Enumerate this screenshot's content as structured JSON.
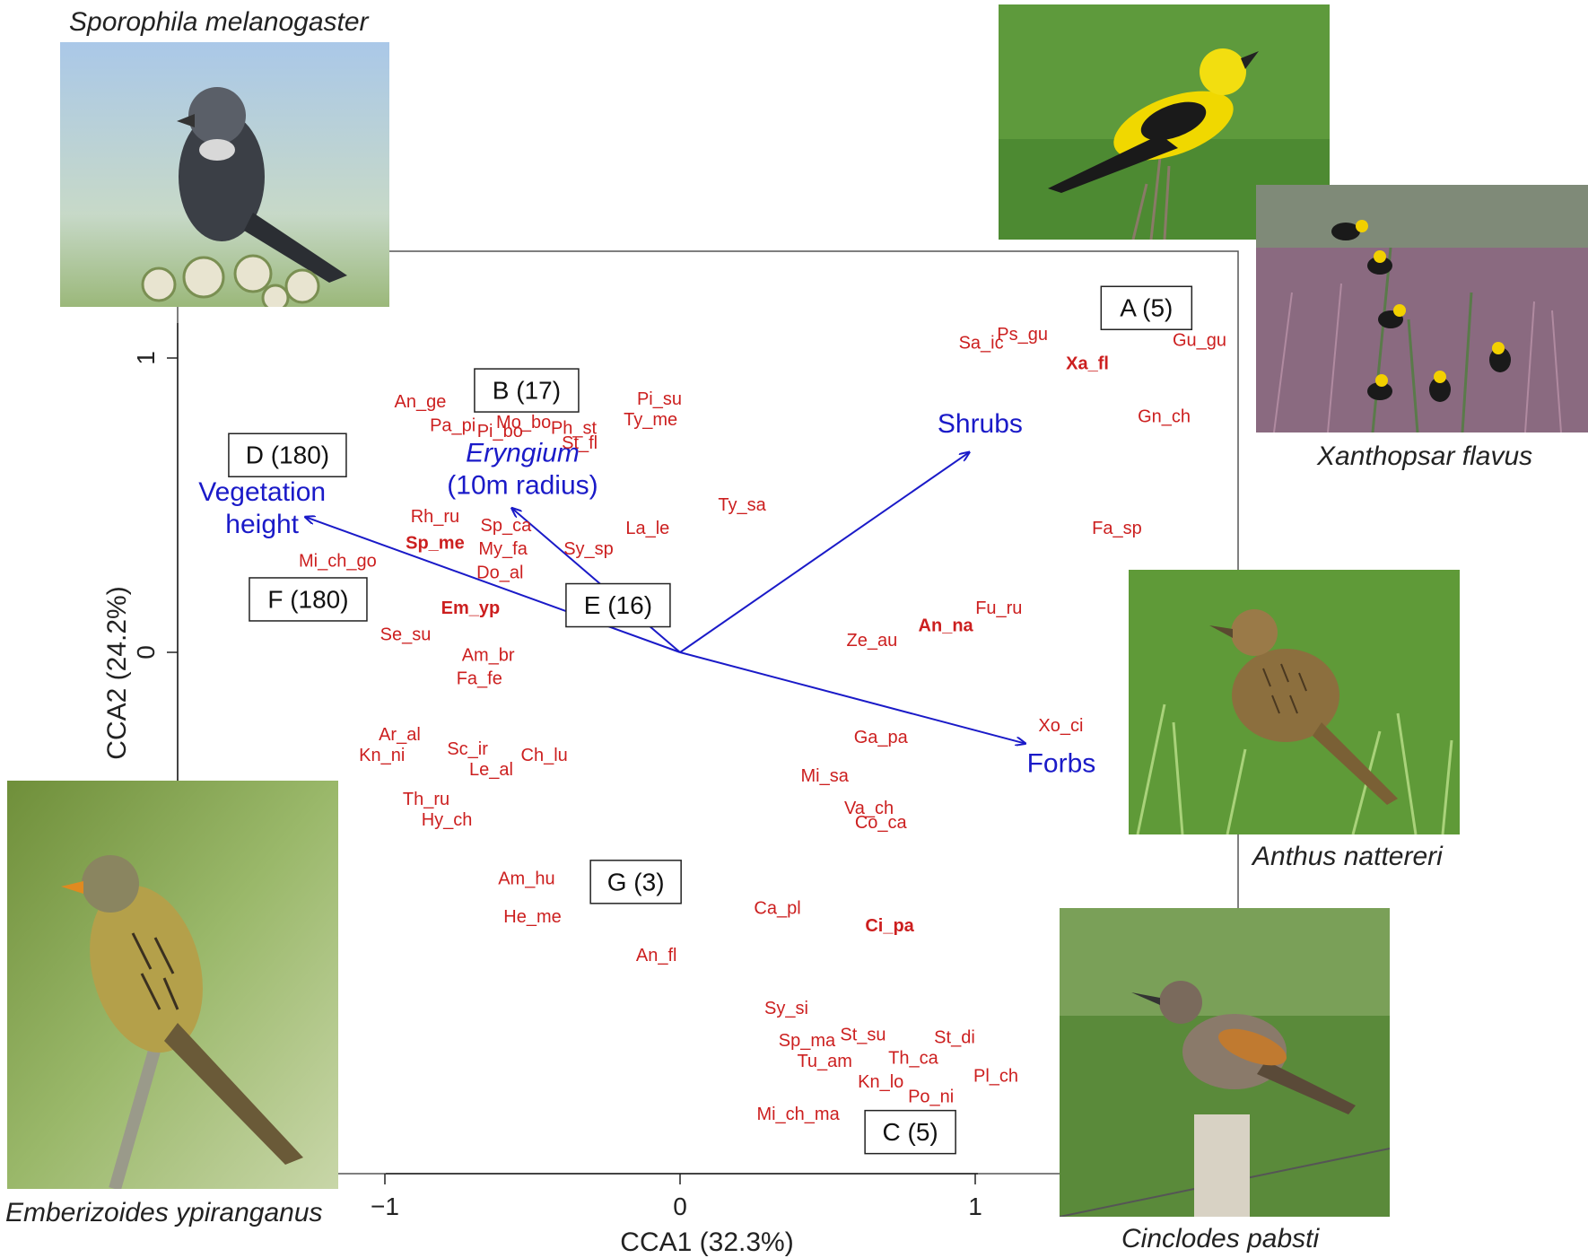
{
  "chart_data": {
    "type": "scatter",
    "xlabel": "CCA1 (32.3%)",
    "ylabel": "CCA2 (24.2%)",
    "xlim": [
      -1.7,
      1.9
    ],
    "ylim": [
      -1.9,
      1.35
    ],
    "x_ticks": [
      {
        "v": -1,
        "label": "−1"
      },
      {
        "v": 0,
        "label": "0"
      },
      {
        "v": 1,
        "label": "1"
      }
    ],
    "y_ticks": [
      {
        "v": 0,
        "label": "0"
      },
      {
        "v": 1,
        "label": "1"
      }
    ],
    "grid": false,
    "species_color": "#cc1f1f",
    "vector_color": "#1a1ac8",
    "species": [
      {
        "label": "Sa_ic",
        "x": 1.02,
        "y": 1.05,
        "bold": false
      },
      {
        "label": "Ps_gu",
        "x": 1.16,
        "y": 1.08,
        "bold": false
      },
      {
        "label": "Gu_gu",
        "x": 1.76,
        "y": 1.06,
        "bold": false
      },
      {
        "label": "Xa_fl",
        "x": 1.38,
        "y": 0.98,
        "bold": true
      },
      {
        "label": "Gn_ch",
        "x": 1.64,
        "y": 0.8,
        "bold": false
      },
      {
        "label": "Fa_sp",
        "x": 1.48,
        "y": 0.42,
        "bold": false
      },
      {
        "label": "Fu_ru",
        "x": 1.08,
        "y": 0.15,
        "bold": false
      },
      {
        "label": "An_na",
        "x": 0.9,
        "y": 0.09,
        "bold": true
      },
      {
        "label": "Ze_au",
        "x": 0.65,
        "y": 0.04,
        "bold": false
      },
      {
        "label": "Xo_ci",
        "x": 1.29,
        "y": -0.25,
        "bold": false
      },
      {
        "label": "Ga_pa",
        "x": 0.68,
        "y": -0.29,
        "bold": false
      },
      {
        "label": "Mi_sa",
        "x": 0.49,
        "y": -0.42,
        "bold": false
      },
      {
        "label": "Va_ch",
        "x": 0.64,
        "y": -0.53,
        "bold": false
      },
      {
        "label": "Co_ca",
        "x": 0.68,
        "y": -0.58,
        "bold": false
      },
      {
        "label": "Ci_pa",
        "x": 0.71,
        "y": -0.93,
        "bold": true
      },
      {
        "label": "Ca_pl",
        "x": 0.33,
        "y": -0.87,
        "bold": false
      },
      {
        "label": "An_fl",
        "x": -0.08,
        "y": -1.03,
        "bold": false
      },
      {
        "label": "Sy_si",
        "x": 0.36,
        "y": -1.21,
        "bold": false
      },
      {
        "label": "Sp_ma",
        "x": 0.43,
        "y": -1.32,
        "bold": false
      },
      {
        "label": "St_su",
        "x": 0.62,
        "y": -1.3,
        "bold": false
      },
      {
        "label": "St_di",
        "x": 0.93,
        "y": -1.31,
        "bold": false
      },
      {
        "label": "Tu_am",
        "x": 0.49,
        "y": -1.39,
        "bold": false
      },
      {
        "label": "Th_ca",
        "x": 0.79,
        "y": -1.38,
        "bold": false
      },
      {
        "label": "Kn_lo",
        "x": 0.68,
        "y": -1.46,
        "bold": false
      },
      {
        "label": "Pl_ch",
        "x": 1.07,
        "y": -1.44,
        "bold": false
      },
      {
        "label": "Po_ni",
        "x": 0.85,
        "y": -1.51,
        "bold": false
      },
      {
        "label": "Mi_ch_ma",
        "x": 0.4,
        "y": -1.57,
        "bold": false
      },
      {
        "label": "Pi_su",
        "x": -0.07,
        "y": 0.86,
        "bold": false
      },
      {
        "label": "Ty_me",
        "x": -0.1,
        "y": 0.79,
        "bold": false
      },
      {
        "label": "An_ge",
        "x": -0.88,
        "y": 0.85,
        "bold": false
      },
      {
        "label": "Pa_pi",
        "x": -0.77,
        "y": 0.77,
        "bold": false
      },
      {
        "label": "Pi_bo",
        "x": -0.61,
        "y": 0.75,
        "bold": false
      },
      {
        "label": "Mo_bo",
        "x": -0.53,
        "y": 0.78,
        "bold": false
      },
      {
        "label": "Ph_st",
        "x": -0.36,
        "y": 0.76,
        "bold": false
      },
      {
        "label": "St_fl",
        "x": -0.34,
        "y": 0.71,
        "bold": false
      },
      {
        "label": "Ty_sa",
        "x": 0.21,
        "y": 0.5,
        "bold": false
      },
      {
        "label": "La_le",
        "x": -0.11,
        "y": 0.42,
        "bold": false
      },
      {
        "label": "Rh_ru",
        "x": -0.83,
        "y": 0.46,
        "bold": false
      },
      {
        "label": "Sp_ca",
        "x": -0.59,
        "y": 0.43,
        "bold": false
      },
      {
        "label": "Sp_me",
        "x": -0.83,
        "y": 0.37,
        "bold": true
      },
      {
        "label": "My_fa",
        "x": -0.6,
        "y": 0.35,
        "bold": false
      },
      {
        "label": "Sy_sp",
        "x": -0.31,
        "y": 0.35,
        "bold": false
      },
      {
        "label": "Mi_ch_go",
        "x": -1.16,
        "y": 0.31,
        "bold": false
      },
      {
        "label": "Do_al",
        "x": -0.61,
        "y": 0.27,
        "bold": false
      },
      {
        "label": "Em_yp",
        "x": -0.71,
        "y": 0.15,
        "bold": true
      },
      {
        "label": "Se_su",
        "x": -0.93,
        "y": 0.06,
        "bold": false
      },
      {
        "label": "Am_br",
        "x": -0.65,
        "y": -0.01,
        "bold": false
      },
      {
        "label": "Fa_fe",
        "x": -0.68,
        "y": -0.09,
        "bold": false
      },
      {
        "label": "Ar_al",
        "x": -0.95,
        "y": -0.28,
        "bold": false
      },
      {
        "label": "Kn_ni",
        "x": -1.01,
        "y": -0.35,
        "bold": false
      },
      {
        "label": "Sc_ir",
        "x": -0.72,
        "y": -0.33,
        "bold": false
      },
      {
        "label": "Ch_lu",
        "x": -0.46,
        "y": -0.35,
        "bold": false
      },
      {
        "label": "Le_al",
        "x": -0.64,
        "y": -0.4,
        "bold": false
      },
      {
        "label": "Th_ru",
        "x": -0.86,
        "y": -0.5,
        "bold": false
      },
      {
        "label": "Hy_ch",
        "x": -0.79,
        "y": -0.57,
        "bold": false
      },
      {
        "label": "Am_hu",
        "x": -0.52,
        "y": -0.77,
        "bold": false
      },
      {
        "label": "He_me",
        "x": -0.5,
        "y": -0.9,
        "bold": false
      }
    ],
    "vectors": [
      {
        "name": "Shrubs",
        "x": 0.98,
        "y": 0.68,
        "italic": false,
        "lines": [
          "Shrubs"
        ]
      },
      {
        "name": "Forbs",
        "x": 1.17,
        "y": -0.31,
        "italic": false,
        "lines": [
          "Forbs"
        ]
      },
      {
        "name": "Vegetation height",
        "x": -1.27,
        "y": 0.46,
        "italic": false,
        "lines": [
          "Vegetation",
          "height"
        ]
      },
      {
        "name": "Eryngium (10m radius)",
        "x": -0.57,
        "y": 0.49,
        "italic": true,
        "lines": [
          "Eryngium",
          "(10m radius)"
        ]
      }
    ],
    "groups": [
      {
        "label": "A (5)",
        "x": 1.58,
        "y": 1.17
      },
      {
        "label": "B (17)",
        "x": -0.52,
        "y": 0.89
      },
      {
        "label": "D (180)",
        "x": -1.33,
        "y": 0.67
      },
      {
        "label": "F (180)",
        "x": -1.26,
        "y": 0.18
      },
      {
        "label": "E (16)",
        "x": -0.21,
        "y": 0.16
      },
      {
        "label": "G (3)",
        "x": -0.15,
        "y": -0.78
      },
      {
        "label": "C (5)",
        "x": 0.78,
        "y": -1.63
      }
    ]
  },
  "photos": [
    {
      "id": "sporophila",
      "caption": "Sporophila melanogaster",
      "bird": "bird-icon"
    },
    {
      "id": "saltator",
      "caption": "",
      "bird": "bird-icon"
    },
    {
      "id": "xanthopsar",
      "caption": "Xanthopsar flavus",
      "bird": "bird-icon"
    },
    {
      "id": "anthus",
      "caption": "Anthus nattereri",
      "bird": "bird-icon"
    },
    {
      "id": "emberizoides",
      "caption": "Emberizoides ypiranganus",
      "bird": "bird-icon"
    },
    {
      "id": "cinclodes",
      "caption": "Cinclodes pabsti",
      "bird": "bird-icon"
    }
  ]
}
